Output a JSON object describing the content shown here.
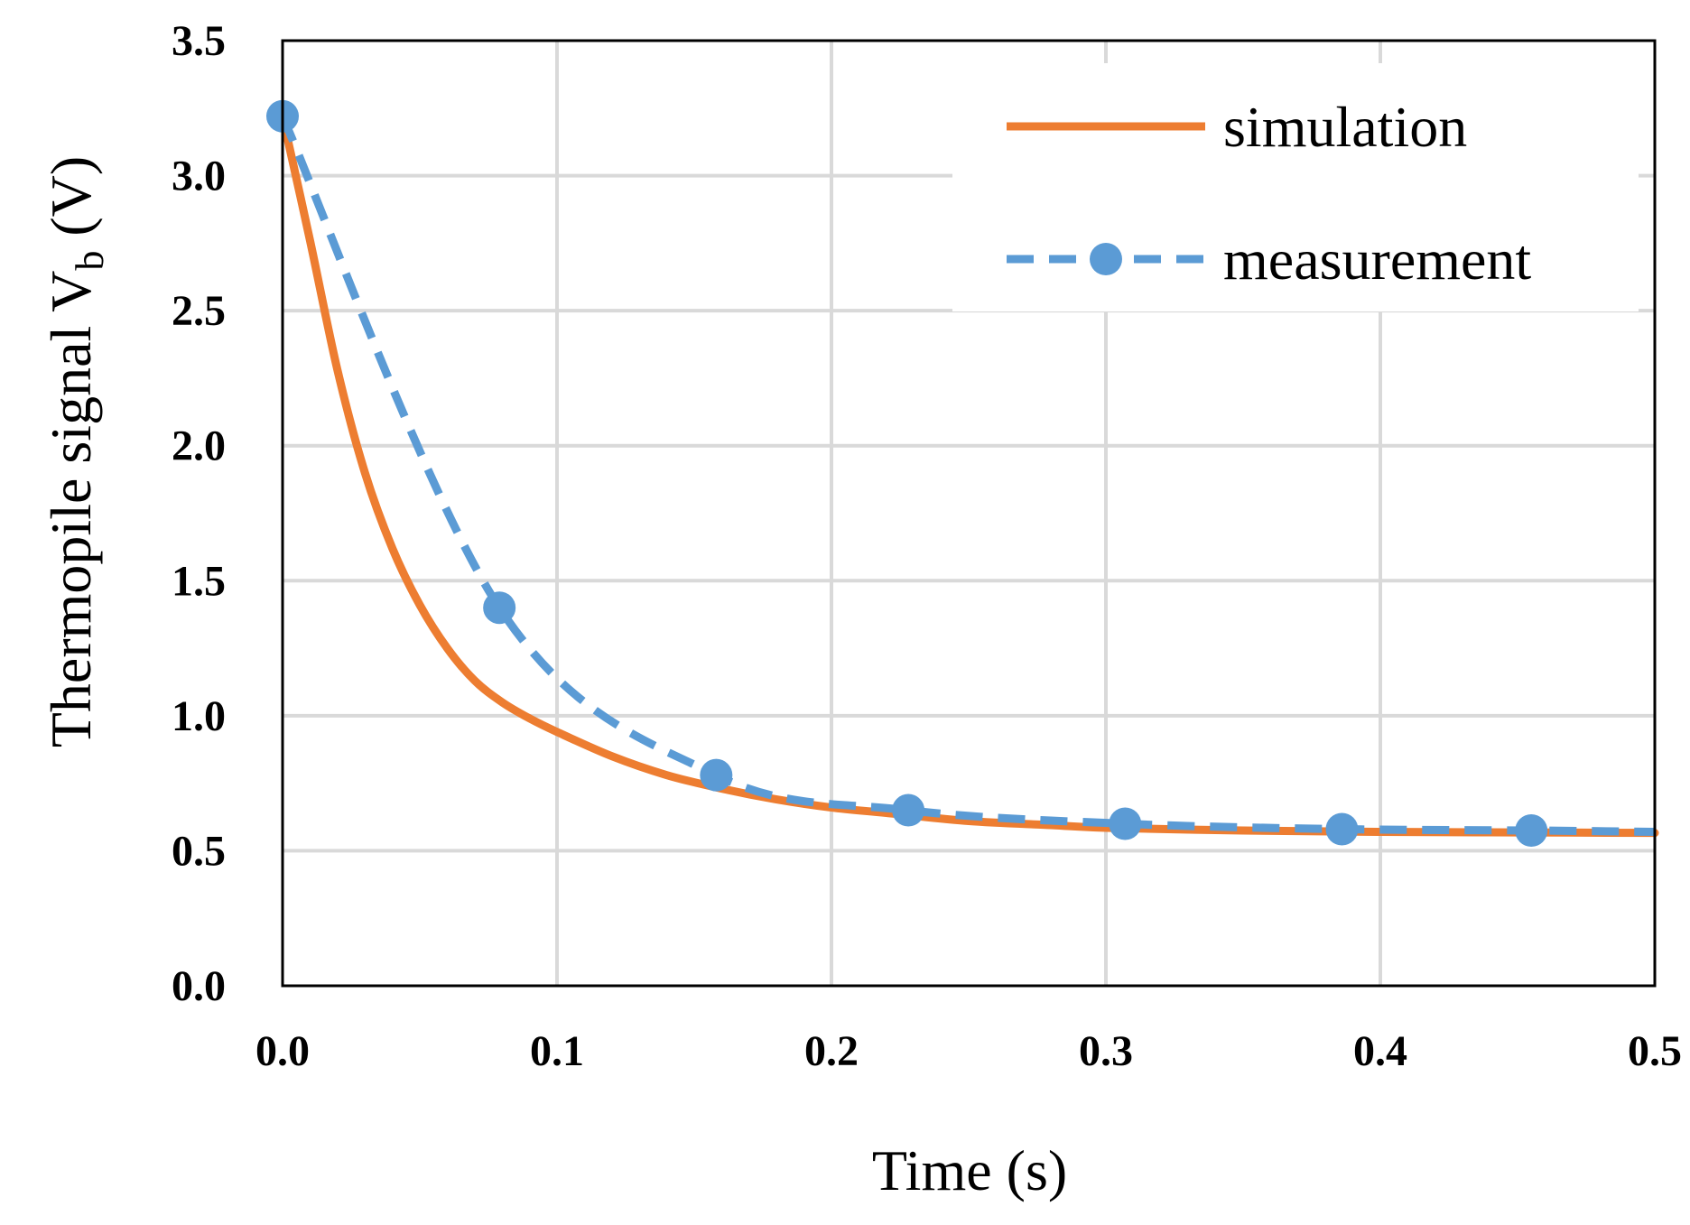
{
  "chart_data": {
    "type": "line",
    "title": "",
    "xlabel": "Time (s)",
    "ylabel_main": "Thermopile signal V",
    "ylabel_sub": "b",
    "ylabel_unit": " (V)",
    "xlim": [
      0.0,
      0.5
    ],
    "ylim": [
      0.0,
      3.5
    ],
    "xticks": [
      0.0,
      0.1,
      0.2,
      0.3,
      0.4,
      0.5
    ],
    "xtick_labels": [
      "0.0",
      "0.1",
      "0.2",
      "0.3",
      "0.4",
      "0.5"
    ],
    "yticks": [
      0.0,
      0.5,
      1.0,
      1.5,
      2.0,
      2.5,
      3.0,
      3.5
    ],
    "ytick_labels": [
      "0.0",
      "0.5",
      "1.0",
      "1.5",
      "2.0",
      "2.5",
      "3.0",
      "3.5"
    ],
    "grid": true,
    "legend_position": "top-right",
    "series": [
      {
        "name": "simulation",
        "style": "solid",
        "marker": "none",
        "color": "#ED7D31",
        "x": [
          0.0,
          0.01,
          0.02,
          0.03,
          0.04,
          0.05,
          0.06,
          0.07,
          0.08,
          0.09,
          0.1,
          0.12,
          0.14,
          0.16,
          0.18,
          0.2,
          0.22,
          0.25,
          0.28,
          0.3,
          0.35,
          0.4,
          0.45,
          0.5
        ],
        "y": [
          3.22,
          2.76,
          2.28,
          1.9,
          1.62,
          1.41,
          1.25,
          1.13,
          1.05,
          0.99,
          0.94,
          0.85,
          0.78,
          0.73,
          0.69,
          0.66,
          0.64,
          0.61,
          0.595,
          0.585,
          0.575,
          0.57,
          0.568,
          0.566
        ]
      },
      {
        "name": "measurement",
        "style": "dashed",
        "marker": "circle",
        "color": "#5B9BD5",
        "x": [
          0.0,
          0.079,
          0.158,
          0.228,
          0.307,
          0.386,
          0.455,
          0.5
        ],
        "y": [
          3.22,
          1.4,
          0.78,
          0.65,
          0.6,
          0.58,
          0.575,
          0.57
        ],
        "marker_count": 7
      }
    ]
  }
}
